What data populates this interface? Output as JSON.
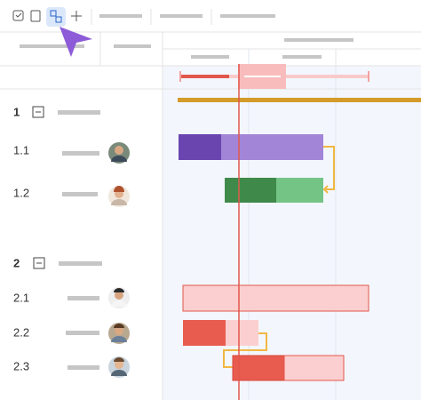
{
  "rows": [
    {
      "label": "1"
    },
    {
      "label": "1.1"
    },
    {
      "label": "1.2"
    },
    {
      "label": "2"
    },
    {
      "label": "2.1"
    },
    {
      "label": "2.2"
    },
    {
      "label": "2.3"
    }
  ]
}
